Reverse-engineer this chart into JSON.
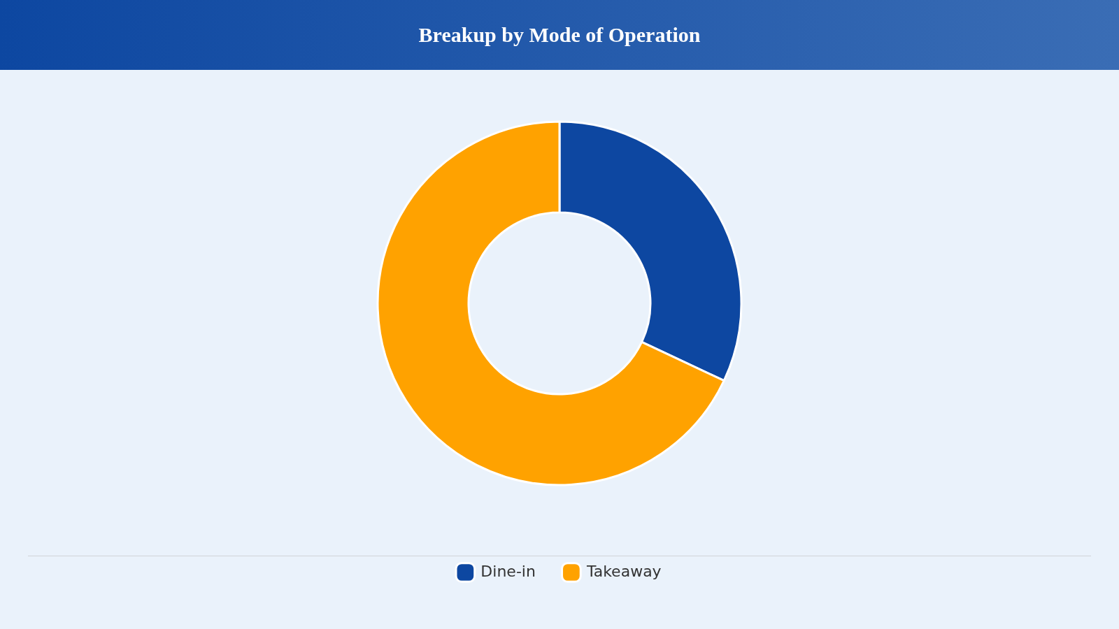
{
  "chart_data": {
    "type": "donut",
    "title": "Breakup by Mode of Operation",
    "categories": [
      "Dine-in",
      "Takeaway"
    ],
    "values": [
      32,
      68
    ],
    "colors": [
      "#0d47a1",
      "#ffa200"
    ],
    "legend": "bottom"
  }
}
